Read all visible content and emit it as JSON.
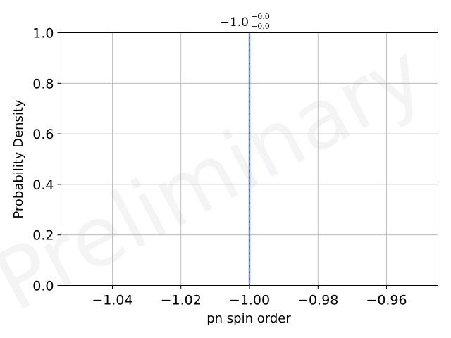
{
  "chart_data": {
    "type": "line",
    "title": {
      "main": "−1.0",
      "sup": "+0.0",
      "sub": "−0.0"
    },
    "xlabel": "pn spin order",
    "ylabel": "Probability Density",
    "xlim": [
      -1.055,
      -0.945
    ],
    "ylim": [
      0.0,
      1.0
    ],
    "xticks": [
      -1.04,
      -1.02,
      -1.0,
      -0.98,
      -0.96
    ],
    "xtick_labels": [
      "−1.04",
      "−1.02",
      "−1.00",
      "−0.98",
      "−0.96"
    ],
    "yticks": [
      0.0,
      0.2,
      0.4,
      0.6,
      0.8,
      1.0
    ],
    "ytick_labels": [
      "0.0",
      "0.2",
      "0.4",
      "0.6",
      "0.8",
      "1.0"
    ],
    "grid": true,
    "vlines": [
      {
        "x": -1.0,
        "style": "solid",
        "color": "#4c72b0"
      },
      {
        "x": -1.0,
        "style": "dashed",
        "color": "#8fa8c8"
      }
    ],
    "watermark": "Preliminary"
  },
  "colors": {
    "line": "#4c72b0",
    "dashed": "#8fa8c8",
    "grid": "#b0b0b0",
    "axes": "#000000"
  }
}
